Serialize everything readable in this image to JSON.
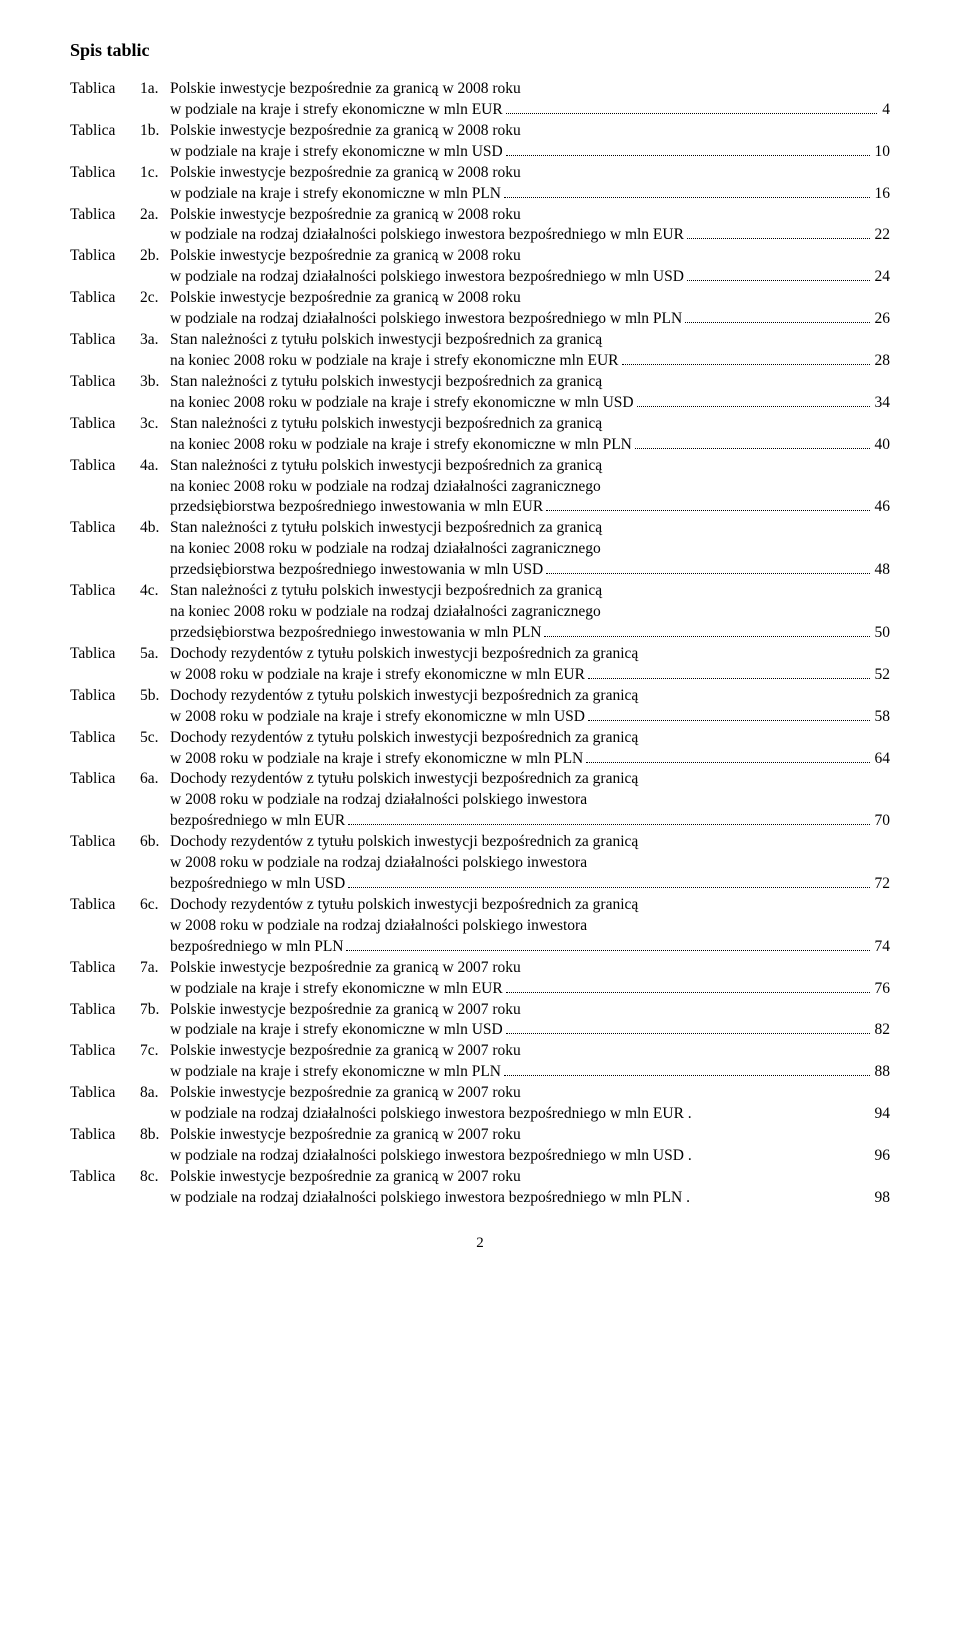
{
  "heading": "Spis tablic",
  "label": "Tablica",
  "page_number": "2",
  "entries": [
    {
      "num": "1a.",
      "lines": [
        "Polskie inwestycje bezpośrednie za granicą w 2008 roku"
      ],
      "last": "w podziale na kraje i strefy ekonomiczne w mln EUR",
      "page": "4"
    },
    {
      "num": "1b.",
      "lines": [
        "Polskie inwestycje bezpośrednie za granicą w 2008 roku"
      ],
      "last": "w podziale na kraje i strefy ekonomiczne w mln USD",
      "page": "10"
    },
    {
      "num": "1c.",
      "lines": [
        "Polskie inwestycje bezpośrednie za granicą w 2008 roku"
      ],
      "last": "w podziale na kraje i strefy ekonomiczne w mln PLN",
      "page": "16"
    },
    {
      "num": "2a.",
      "lines": [
        "Polskie inwestycje bezpośrednie za granicą w 2008 roku"
      ],
      "last": "w podziale na rodzaj działalności polskiego inwestora bezpośredniego w mln EUR",
      "page": "22"
    },
    {
      "num": "2b.",
      "lines": [
        "Polskie inwestycje bezpośrednie za granicą w 2008 roku"
      ],
      "last": "w podziale na rodzaj działalności polskiego inwestora bezpośredniego w mln USD",
      "page": "24"
    },
    {
      "num": "2c.",
      "lines": [
        "Polskie inwestycje bezpośrednie za granicą w 2008 roku"
      ],
      "last": "w podziale na rodzaj działalności polskiego inwestora bezpośredniego w mln PLN",
      "page": "26"
    },
    {
      "num": "3a.",
      "lines": [
        "Stan należności z tytułu polskich inwestycji bezpośrednich za granicą"
      ],
      "last": "na koniec 2008 roku w podziale na kraje i strefy ekonomiczne mln EUR",
      "page": "28"
    },
    {
      "num": "3b.",
      "lines": [
        "Stan należności z tytułu polskich inwestycji bezpośrednich za granicą"
      ],
      "last": "na koniec 2008 roku w podziale na kraje i strefy ekonomiczne w mln USD",
      "page": "34"
    },
    {
      "num": "3c.",
      "lines": [
        "Stan należności z tytułu polskich inwestycji bezpośrednich za granicą"
      ],
      "last": "na koniec 2008 roku w podziale na kraje i strefy ekonomiczne w mln PLN",
      "page": "40"
    },
    {
      "num": "4a.",
      "lines": [
        "Stan należności z tytułu polskich inwestycji bezpośrednich za granicą",
        "na koniec 2008 roku w podziale na rodzaj działalności zagranicznego"
      ],
      "last": "przedsiębiorstwa bezpośredniego inwestowania w mln EUR",
      "page": "46"
    },
    {
      "num": "4b.",
      "lines": [
        "Stan należności z tytułu polskich inwestycji bezpośrednich za granicą",
        "na koniec 2008 roku w podziale na rodzaj działalności zagranicznego"
      ],
      "last": "przedsiębiorstwa bezpośredniego inwestowania w mln USD",
      "page": "48"
    },
    {
      "num": "4c.",
      "lines": [
        "Stan należności z tytułu polskich inwestycji bezpośrednich za granicą",
        "na koniec 2008 roku w podziale na rodzaj działalności zagranicznego"
      ],
      "last": "przedsiębiorstwa bezpośredniego inwestowania w mln PLN",
      "page": "50"
    },
    {
      "num": "5a.",
      "lines": [
        "Dochody rezydentów z tytułu polskich inwestycji bezpośrednich za granicą"
      ],
      "last": "w 2008 roku w podziale na kraje i strefy ekonomiczne w mln EUR",
      "page": "52"
    },
    {
      "num": "5b.",
      "lines": [
        "Dochody rezydentów z tytułu polskich inwestycji bezpośrednich za granicą"
      ],
      "last": "w 2008 roku w podziale na kraje i strefy ekonomiczne w mln USD",
      "page": "58"
    },
    {
      "num": "5c.",
      "lines": [
        "Dochody rezydentów z tytułu polskich inwestycji bezpośrednich za granicą"
      ],
      "last": "w 2008 roku w podziale na kraje i strefy ekonomiczne w mln PLN",
      "page": "64"
    },
    {
      "num": "6a.",
      "lines": [
        "Dochody rezydentów z tytułu polskich inwestycji bezpośrednich za granicą",
        "w 2008 roku w podziale na rodzaj działalności polskiego inwestora"
      ],
      "last": "bezpośredniego w mln EUR",
      "page": "70"
    },
    {
      "num": "6b.",
      "lines": [
        "Dochody rezydentów z tytułu polskich inwestycji bezpośrednich za granicą",
        "w 2008 roku w podziale na rodzaj działalności polskiego inwestora"
      ],
      "last": "bezpośredniego w mln USD",
      "page": "72"
    },
    {
      "num": "6c.",
      "lines": [
        "Dochody rezydentów z tytułu polskich inwestycji bezpośrednich za granicą",
        "w 2008 roku w podziale na rodzaj działalności polskiego inwestora"
      ],
      "last": "bezpośredniego w mln PLN",
      "page": "74"
    },
    {
      "num": " 7a.",
      "lines": [
        "Polskie inwestycje bezpośrednie za granicą w 2007 roku"
      ],
      "last": "w podziale na kraje i strefy ekonomiczne w mln EUR",
      "page": "76"
    },
    {
      "num": " 7b.",
      "lines": [
        "Polskie inwestycje bezpośrednie za granicą w 2007 roku"
      ],
      "last": "w podziale na kraje i strefy ekonomiczne w mln USD",
      "page": "82"
    },
    {
      "num": " 7c.",
      "lines": [
        "Polskie inwestycje bezpośrednie za granicą w 2007 roku"
      ],
      "last": "w podziale na kraje i strefy ekonomiczne w mln PLN",
      "page": "88"
    },
    {
      "num": "8a.",
      "lines": [
        "Polskie inwestycje bezpośrednie za granicą w 2007 roku"
      ],
      "last": "w podziale na rodzaj działalności polskiego inwestora bezpośredniego w mln EUR .",
      "page": "94",
      "nodots": true
    },
    {
      "num": "8b.",
      "lines": [
        "Polskie inwestycje bezpośrednie za granicą w 2007 roku"
      ],
      "last": "w podziale na rodzaj działalności polskiego inwestora bezpośredniego w mln USD .",
      "page": "96",
      "nodots": true
    },
    {
      "num": "8c.",
      "lines": [
        "Polskie inwestycje bezpośrednie za granicą w 2007 roku"
      ],
      "last": "w podziale na rodzaj działalności polskiego inwestora bezpośredniego w mln PLN .",
      "page": "98",
      "nodots": true
    }
  ]
}
